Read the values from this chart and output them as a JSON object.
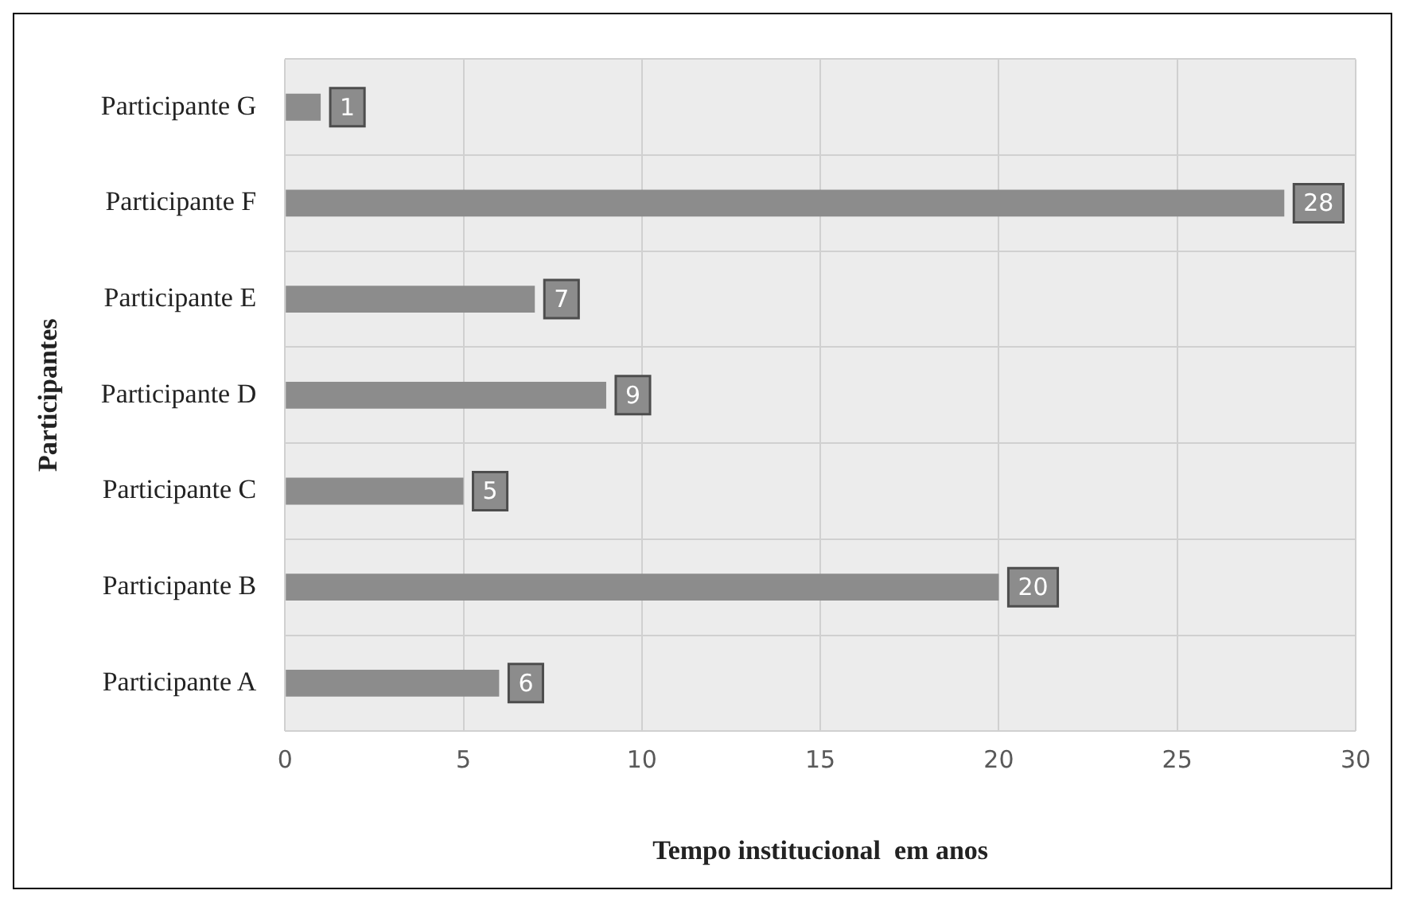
{
  "chart_data": {
    "type": "bar",
    "orientation": "horizontal",
    "xlabel": "Tempo institucional  em anos",
    "ylabel": "Participantes",
    "categories": [
      "Participante G",
      "Participante F",
      "Participante E",
      "Participante D",
      "Participante C",
      "Participante B",
      "Participante A"
    ],
    "values": [
      1,
      28,
      7,
      9,
      5,
      20,
      6
    ],
    "color": "#8c8c8c",
    "xlim": [
      0,
      30
    ],
    "xticks": [
      0,
      5,
      10,
      15,
      20,
      25,
      30
    ],
    "grid": true,
    "data_labels": true
  }
}
